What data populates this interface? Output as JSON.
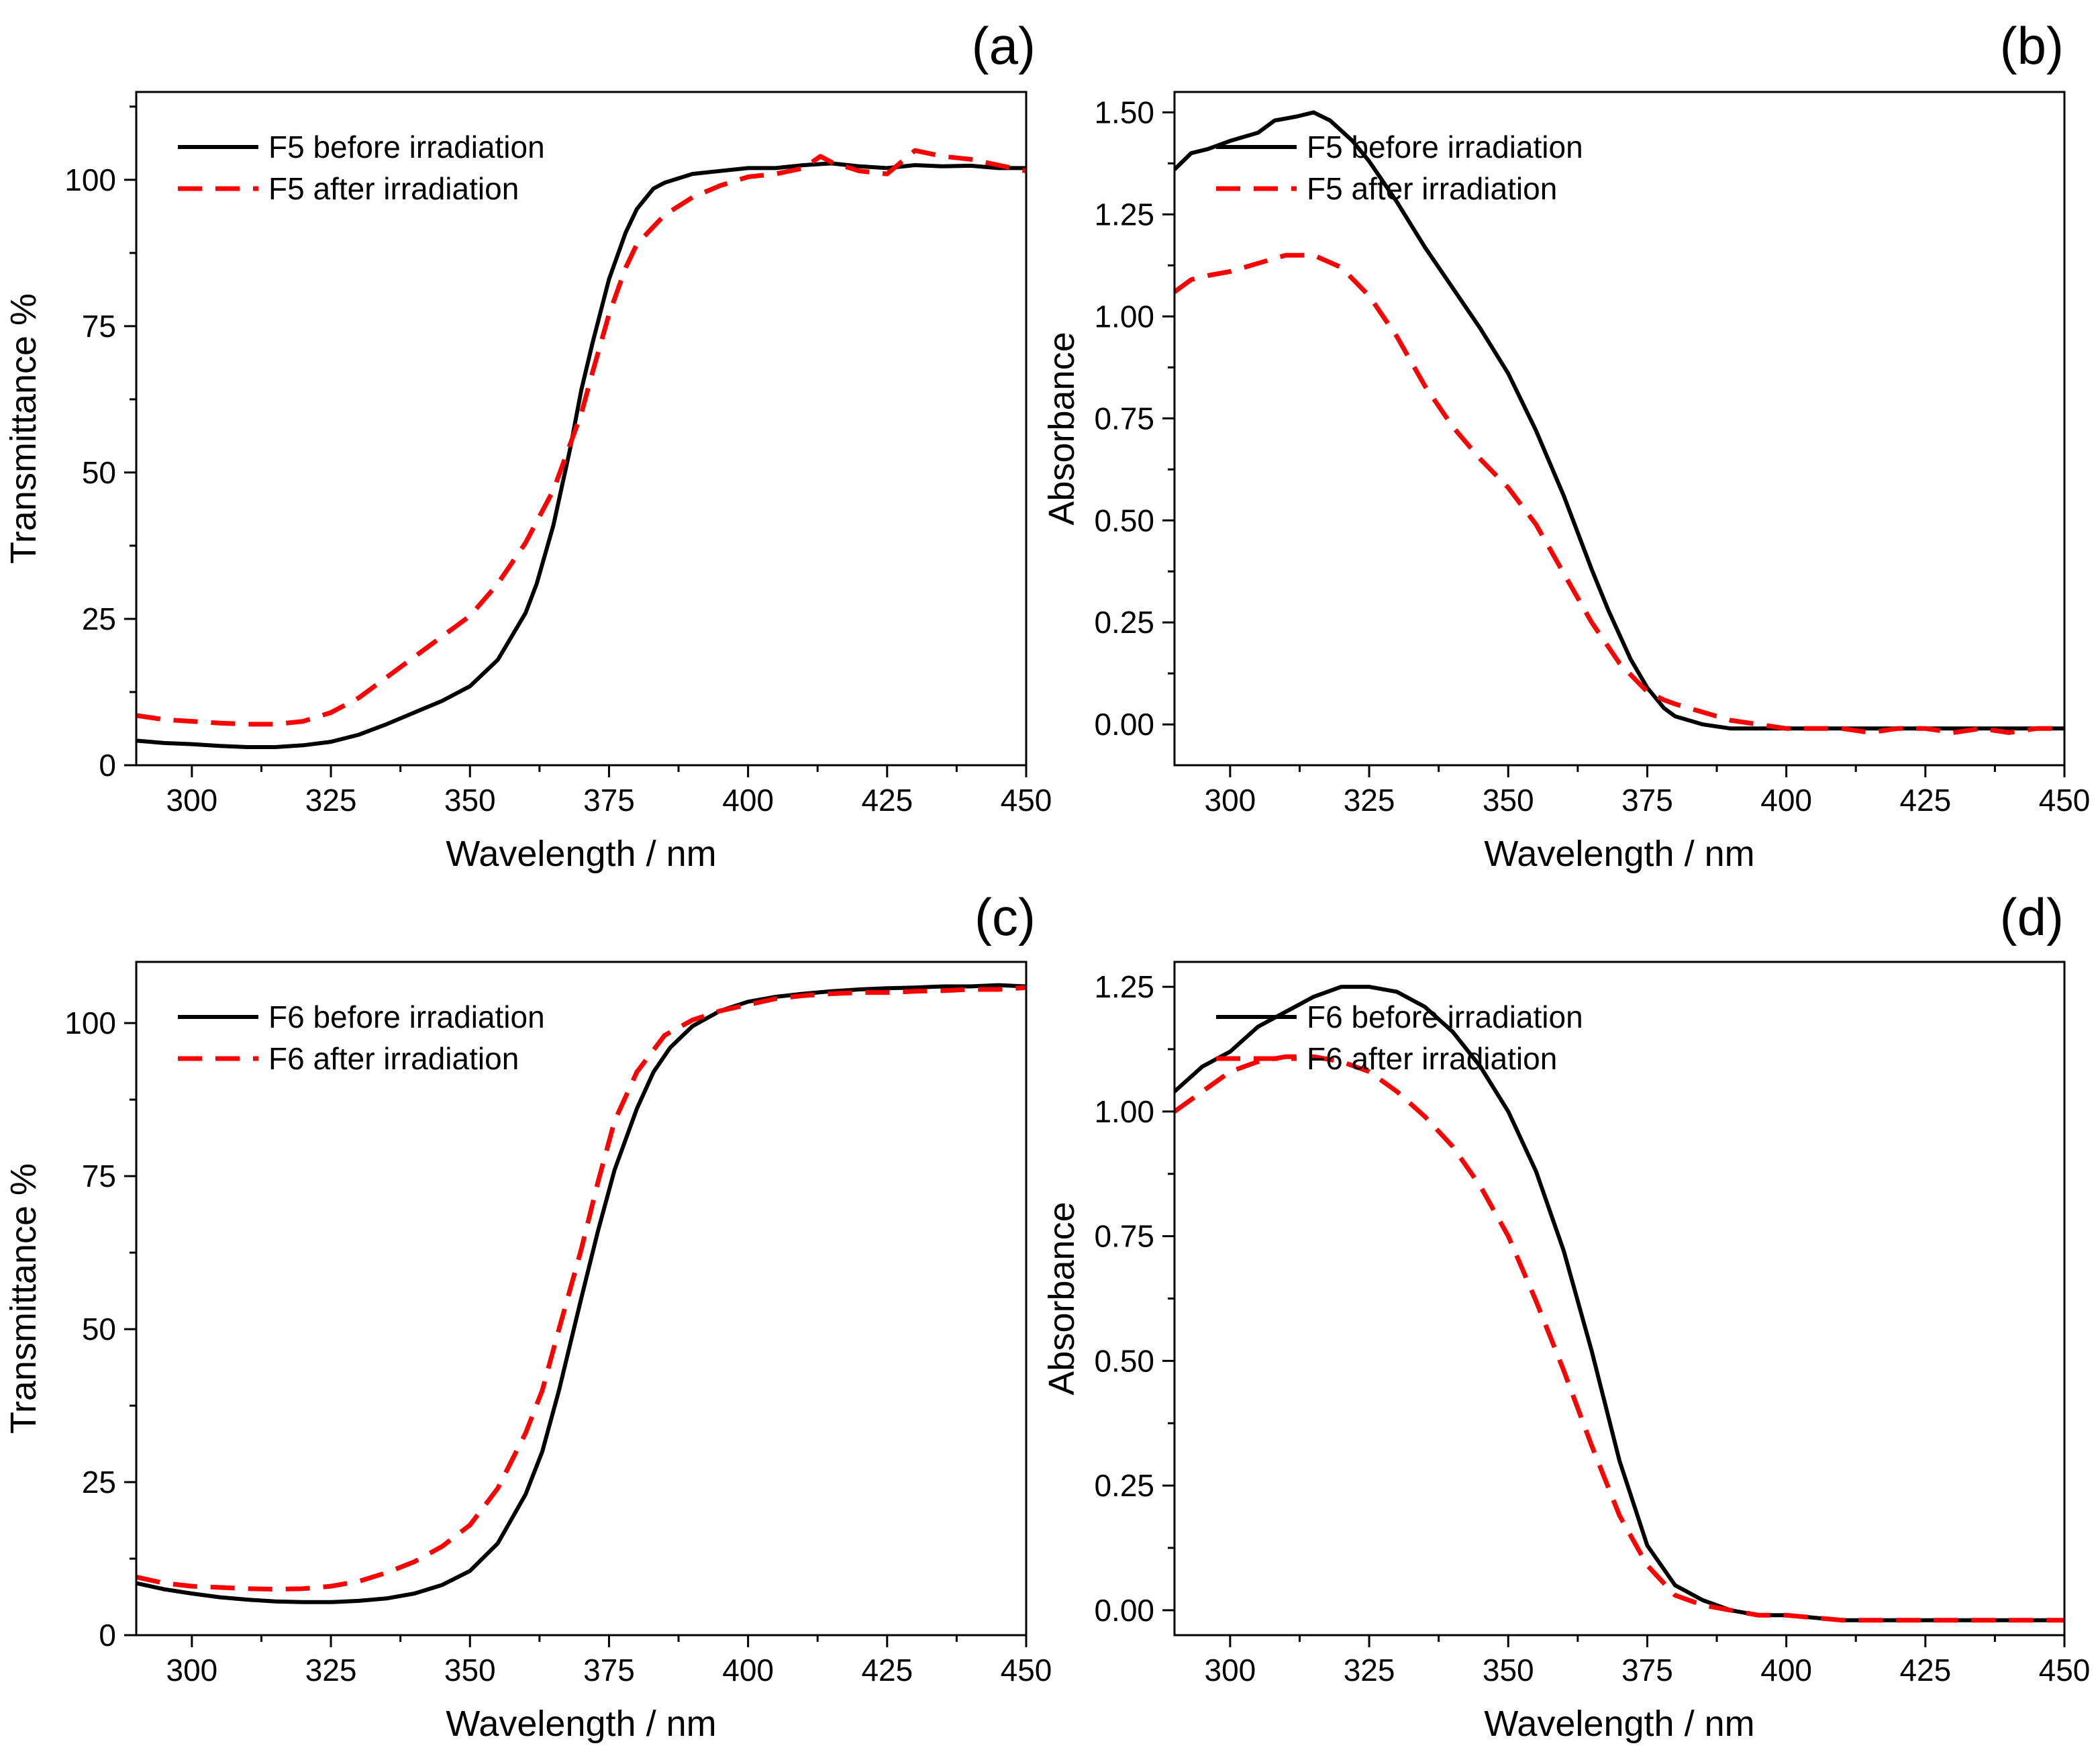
{
  "chart_data": [
    {
      "type": "line",
      "panel_label": "(a)",
      "xlabel": "Wavelength / nm",
      "ylabel": "Transmittance %",
      "xlim": [
        290,
        450
      ],
      "ylim": [
        0,
        115
      ],
      "xticks": [
        "300",
        "325",
        "350",
        "375",
        "400",
        "425",
        "450"
      ],
      "yticks": [
        "0",
        "25",
        "50",
        "75",
        "100"
      ],
      "legend": [
        "F5 before irradiation",
        "F5 after irradiation"
      ],
      "series": [
        {
          "name": "F5 before irradiation",
          "style": "solid",
          "color": "#000000",
          "x": [
            290,
            295,
            300,
            305,
            310,
            315,
            320,
            325,
            330,
            335,
            340,
            345,
            350,
            355,
            360,
            362,
            365,
            368,
            370,
            372,
            375,
            378,
            380,
            383,
            385,
            390,
            395,
            400,
            405,
            410,
            415,
            420,
            425,
            430,
            435,
            440,
            445,
            450
          ],
          "y": [
            4.2,
            3.8,
            3.6,
            3.3,
            3.1,
            3.1,
            3.4,
            4.0,
            5.2,
            7.0,
            9.0,
            11.0,
            13.5,
            18.0,
            26.0,
            31.0,
            41.0,
            54.0,
            64.0,
            72.0,
            83.0,
            91.0,
            95.0,
            98.5,
            99.5,
            101.0,
            101.5,
            102.0,
            102.0,
            102.5,
            102.8,
            102.3,
            102.0,
            102.5,
            102.3,
            102.4,
            102.0,
            102.0
          ]
        },
        {
          "name": "F5 after irradiation",
          "style": "dashed",
          "color": "#ff0000",
          "x": [
            290,
            295,
            300,
            305,
            310,
            315,
            320,
            325,
            330,
            335,
            340,
            345,
            350,
            355,
            360,
            365,
            370,
            372,
            375,
            378,
            380,
            385,
            390,
            395,
            400,
            405,
            410,
            413,
            415,
            420,
            425,
            430,
            435,
            440,
            445,
            450
          ],
          "y": [
            8.5,
            7.8,
            7.5,
            7.2,
            7.0,
            7.0,
            7.5,
            9.0,
            11.5,
            15.0,
            18.5,
            22.0,
            25.5,
            31.0,
            38.0,
            47.0,
            60.0,
            67.0,
            77.0,
            85.0,
            89.0,
            94.0,
            97.0,
            99.0,
            100.5,
            101.0,
            102.0,
            104.0,
            103.0,
            101.5,
            101.0,
            105.0,
            104.0,
            103.5,
            102.5,
            101.5
          ]
        }
      ]
    },
    {
      "type": "line",
      "panel_label": "(b)",
      "xlabel": "Wavelength / nm",
      "ylabel": "Absorbance",
      "xlim": [
        290,
        450
      ],
      "ylim": [
        -0.1,
        1.55
      ],
      "xticks": [
        "300",
        "325",
        "350",
        "375",
        "400",
        "425",
        "450"
      ],
      "yticks": [
        "0.00",
        "0.25",
        "0.50",
        "0.75",
        "1.00",
        "1.25",
        "1.50"
      ],
      "legend": [
        "F5 before irradiation",
        "F5 after irradiation"
      ],
      "series": [
        {
          "name": "F5 before irradiation",
          "style": "solid",
          "color": "#000000",
          "x": [
            290,
            293,
            296,
            300,
            305,
            308,
            312,
            315,
            318,
            322,
            325,
            330,
            335,
            340,
            345,
            350,
            355,
            360,
            365,
            368,
            372,
            375,
            378,
            380,
            385,
            390,
            395,
            400,
            405,
            410,
            415,
            420,
            425,
            430,
            435,
            440,
            445,
            450
          ],
          "y": [
            1.36,
            1.4,
            1.41,
            1.43,
            1.45,
            1.48,
            1.49,
            1.5,
            1.48,
            1.43,
            1.38,
            1.28,
            1.17,
            1.07,
            0.97,
            0.86,
            0.72,
            0.56,
            0.38,
            0.28,
            0.16,
            0.09,
            0.04,
            0.02,
            0.0,
            -0.01,
            -0.01,
            -0.01,
            -0.01,
            -0.01,
            -0.01,
            -0.01,
            -0.01,
            -0.01,
            -0.01,
            -0.01,
            -0.01,
            -0.01
          ]
        },
        {
          "name": "F5 after irradiation",
          "style": "dashed",
          "color": "#ff0000",
          "x": [
            290,
            293,
            296,
            300,
            305,
            310,
            315,
            320,
            325,
            330,
            335,
            340,
            345,
            350,
            355,
            360,
            365,
            370,
            375,
            378,
            380,
            385,
            390,
            395,
            400,
            405,
            410,
            415,
            420,
            425,
            430,
            435,
            440,
            445,
            450
          ],
          "y": [
            1.06,
            1.09,
            1.1,
            1.11,
            1.13,
            1.15,
            1.15,
            1.12,
            1.05,
            0.95,
            0.83,
            0.73,
            0.65,
            0.58,
            0.49,
            0.37,
            0.25,
            0.15,
            0.08,
            0.06,
            0.05,
            0.03,
            0.01,
            0.0,
            -0.01,
            -0.01,
            -0.01,
            -0.02,
            -0.01,
            -0.01,
            -0.02,
            -0.01,
            -0.02,
            -0.01,
            -0.01
          ]
        }
      ]
    },
    {
      "type": "line",
      "panel_label": "(c)",
      "xlabel": "Wavelength / nm",
      "ylabel": "Transmittance %",
      "xlim": [
        290,
        450
      ],
      "ylim": [
        0,
        110
      ],
      "xticks": [
        "300",
        "325",
        "350",
        "375",
        "400",
        "425",
        "450"
      ],
      "yticks": [
        "0",
        "25",
        "50",
        "75",
        "100"
      ],
      "legend": [
        "F6 before irradiation",
        "F6 after irradiation"
      ],
      "series": [
        {
          "name": "F6 before irradiation",
          "style": "solid",
          "color": "#000000",
          "x": [
            290,
            295,
            300,
            305,
            310,
            315,
            320,
            325,
            330,
            335,
            340,
            345,
            350,
            355,
            360,
            363,
            366,
            370,
            373,
            376,
            380,
            383,
            386,
            390,
            395,
            400,
            405,
            410,
            415,
            420,
            425,
            430,
            435,
            440,
            445,
            450
          ],
          "y": [
            8.5,
            7.5,
            6.8,
            6.2,
            5.8,
            5.5,
            5.4,
            5.4,
            5.6,
            6.0,
            6.8,
            8.2,
            10.5,
            15.0,
            23.0,
            30.0,
            40.0,
            55.0,
            66.0,
            76.0,
            86.0,
            92.0,
            96.0,
            99.5,
            102.0,
            103.5,
            104.3,
            104.8,
            105.2,
            105.5,
            105.7,
            105.8,
            106.0,
            106.0,
            106.2,
            106.0
          ]
        },
        {
          "name": "F6 after irradiation",
          "style": "dashed",
          "color": "#ff0000",
          "x": [
            290,
            295,
            300,
            305,
            310,
            315,
            320,
            325,
            330,
            335,
            340,
            345,
            350,
            355,
            360,
            363,
            366,
            370,
            373,
            376,
            380,
            385,
            390,
            395,
            400,
            405,
            410,
            415,
            420,
            425,
            430,
            435,
            440,
            445,
            450
          ],
          "y": [
            9.5,
            8.5,
            8.0,
            7.8,
            7.6,
            7.5,
            7.6,
            8.0,
            8.8,
            10.2,
            12.0,
            14.5,
            18.0,
            24.0,
            33.0,
            40.0,
            50.0,
            63.0,
            74.0,
            84.0,
            92.0,
            98.0,
            100.5,
            102.0,
            103.0,
            104.0,
            104.5,
            104.8,
            105.0,
            105.0,
            105.2,
            105.3,
            105.5,
            105.5,
            105.8
          ]
        }
      ]
    },
    {
      "type": "line",
      "panel_label": "(d)",
      "xlabel": "Wavelength / nm",
      "ylabel": "Absorbance",
      "xlim": [
        290,
        450
      ],
      "ylim": [
        -0.05,
        1.3
      ],
      "xticks": [
        "300",
        "325",
        "350",
        "375",
        "400",
        "425",
        "450"
      ],
      "yticks": [
        "0.00",
        "0.25",
        "0.50",
        "0.75",
        "1.00",
        "1.25"
      ],
      "legend": [
        "F6 before irradiation",
        "F6 after irradiation"
      ],
      "series": [
        {
          "name": "F6 before irradiation",
          "style": "solid",
          "color": "#000000",
          "x": [
            290,
            295,
            300,
            305,
            310,
            315,
            320,
            325,
            330,
            335,
            340,
            345,
            350,
            355,
            360,
            365,
            370,
            375,
            380,
            385,
            390,
            395,
            400,
            410,
            420,
            430,
            440,
            450
          ],
          "y": [
            1.04,
            1.09,
            1.12,
            1.17,
            1.2,
            1.23,
            1.25,
            1.25,
            1.24,
            1.21,
            1.16,
            1.09,
            1.0,
            0.88,
            0.72,
            0.52,
            0.3,
            0.13,
            0.05,
            0.02,
            0.0,
            -0.01,
            -0.01,
            -0.02,
            -0.02,
            -0.02,
            -0.02,
            -0.02
          ]
        },
        {
          "name": "F6 after irradiation",
          "style": "dashed",
          "color": "#ff0000",
          "x": [
            290,
            295,
            300,
            305,
            310,
            315,
            320,
            325,
            330,
            335,
            340,
            345,
            350,
            355,
            360,
            365,
            370,
            375,
            380,
            385,
            390,
            395,
            400,
            410,
            420,
            430,
            440,
            450
          ],
          "y": [
            1.0,
            1.04,
            1.08,
            1.1,
            1.11,
            1.11,
            1.1,
            1.08,
            1.04,
            0.99,
            0.93,
            0.85,
            0.75,
            0.62,
            0.48,
            0.33,
            0.19,
            0.09,
            0.03,
            0.01,
            0.0,
            -0.01,
            -0.01,
            -0.02,
            -0.02,
            -0.02,
            -0.02,
            -0.02
          ]
        }
      ]
    }
  ]
}
